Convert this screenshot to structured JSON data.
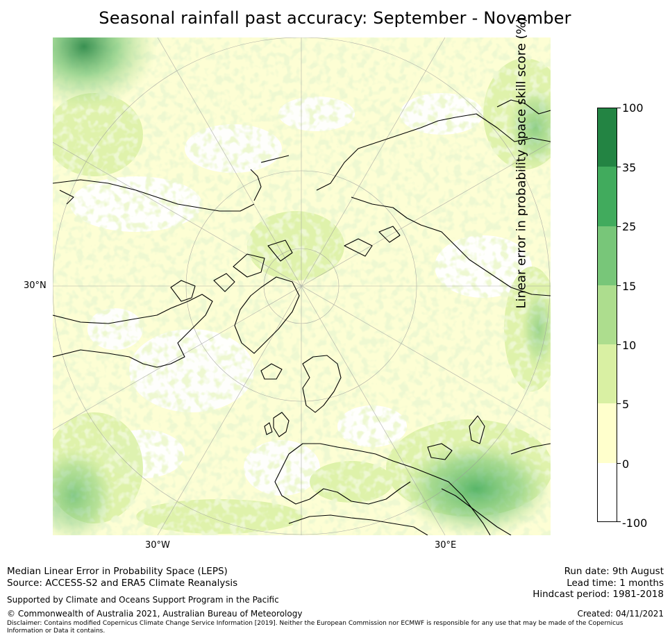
{
  "title": "Seasonal rainfall past accuracy: September - November",
  "map": {
    "lat_label": "30°N",
    "lon_labels": [
      "30°W",
      "30°E"
    ],
    "colors": {
      "land_outline": "#000000",
      "graticule": "#9a9a9a"
    }
  },
  "colorbar": {
    "label": "Linear error in probability space skill score (%)",
    "bounds": [
      "100",
      "35",
      "25",
      "15",
      "10",
      "5",
      "0",
      "-100"
    ],
    "bins": [
      {
        "range": "35 to 100",
        "color": "#238443"
      },
      {
        "range": "25 to 35",
        "color": "#41ab5d"
      },
      {
        "range": "15 to 25",
        "color": "#78c679"
      },
      {
        "range": "10 to 15",
        "color": "#addd8e"
      },
      {
        "range": "5 to 10",
        "color": "#d9f0a3"
      },
      {
        "range": "0 to 5",
        "color": "#ffffcc"
      },
      {
        "range": "-100 to 0",
        "color": "#ffffff"
      }
    ]
  },
  "footer": {
    "left_line1": "Median Linear Error in Probability Space (LEPS)",
    "left_line2": "Source: ACCESS-S2 and ERA5 Climate Reanalysis",
    "supported": "Supported by Climate and Oceans Support Program in the Pacific",
    "copyright": "© Commonwealth of Australia 2021, Australian Bureau of Meteorology",
    "disclaimer1": "Disclaimer: Contains modified Copernicus Climate Change Service Information [2019]. Neither the European Commission nor ECMWF is responsible for any use that may be made of the Copernicus",
    "disclaimer2": "Information or Data it contains.",
    "run_date": "Run date: 9th August",
    "lead_time": "Lead time: 1 months",
    "hindcast": "Hindcast period: 1981-2018",
    "created": "Created: 04/11/2021"
  }
}
